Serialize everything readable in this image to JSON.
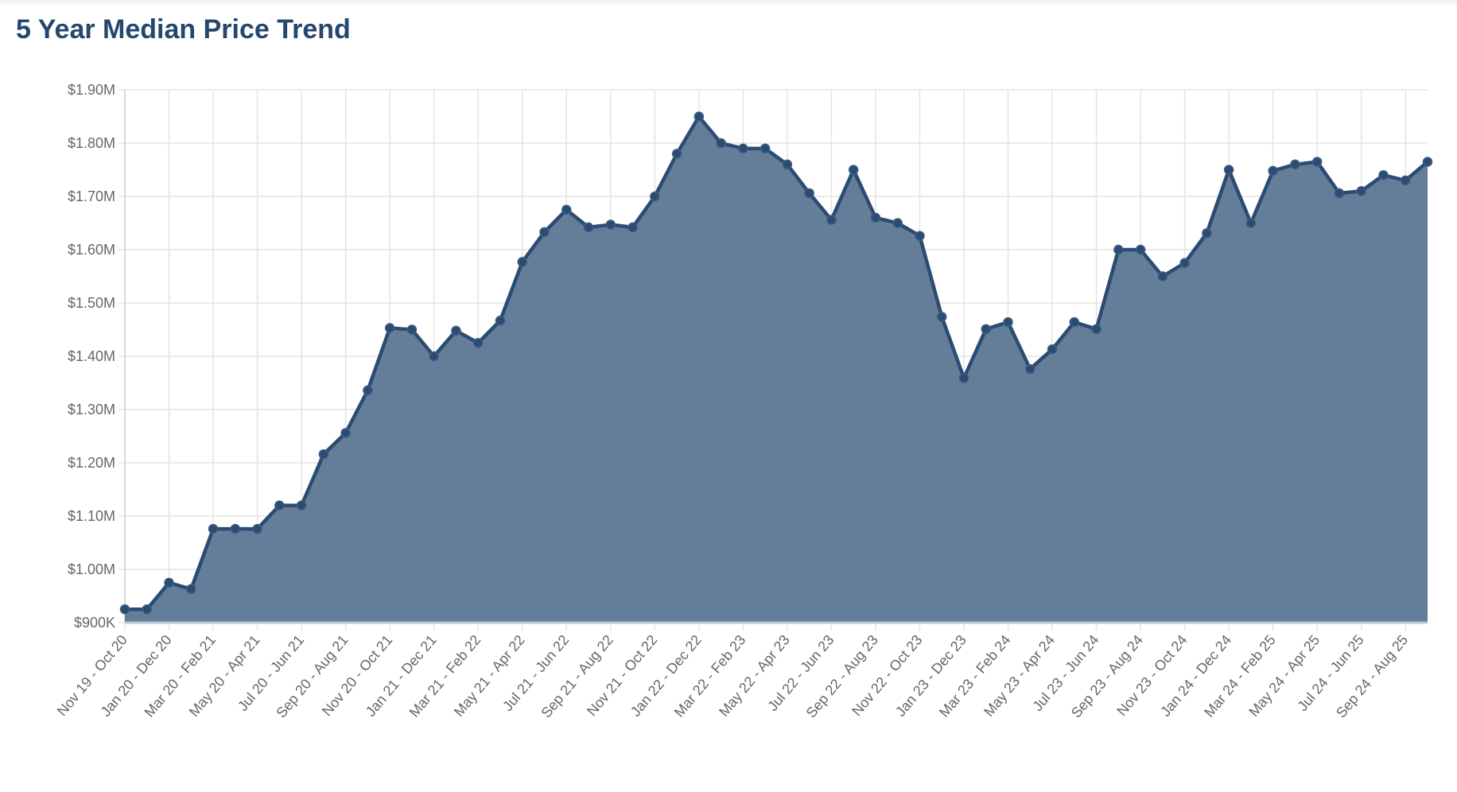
{
  "title": "5 Year Median Price Trend",
  "chart_data": {
    "type": "area",
    "title": "5 Year Median Price Trend",
    "xlabel": "",
    "ylabel": "",
    "ylim": [
      900000,
      1900000
    ],
    "y_ticks": [
      900000,
      1000000,
      1100000,
      1200000,
      1300000,
      1400000,
      1500000,
      1600000,
      1700000,
      1800000,
      1900000
    ],
    "y_tick_labels": [
      "$900K",
      "$1.00M",
      "$1.10M",
      "$1.20M",
      "$1.30M",
      "$1.40M",
      "$1.50M",
      "$1.60M",
      "$1.70M",
      "$1.80M",
      "$1.90M"
    ],
    "x_tick_labels": [
      "Nov 19 - Oct 20",
      "Jan 20 - Dec 20",
      "Mar 20 - Feb 21",
      "May 20 - Apr 21",
      "Jul 20 - Jun 21",
      "Sep 20 - Aug 21",
      "Nov 20 - Oct 21",
      "Jan 21 - Dec 21",
      "Mar 21 - Feb 22",
      "May 21 - Apr 22",
      "Jul 21 - Jun 22",
      "Sep 21 - Aug 22",
      "Nov 21 - Oct 22",
      "Jan 22 - Dec 22",
      "Mar 22 - Feb 23",
      "May 22 - Apr 23",
      "Jul 22 - Jun 23",
      "Sep 22 - Aug 23",
      "Nov 22 - Oct 23",
      "Jan 23 - Dec 23",
      "Mar 23 - Feb 24",
      "May 23 - Apr 24",
      "Jul 23 - Jun 24",
      "Sep 23 - Aug 24",
      "Nov 23 - Oct 24",
      "Jan 24 - Dec 24",
      "Mar 24 - Feb 25",
      "May 24 - Apr 25",
      "Jul 24 - Jun 25",
      "Sep 24 - Aug 25"
    ],
    "values": [
      925000,
      925000,
      975000,
      963000,
      1076000,
      1076000,
      1076000,
      1120000,
      1120000,
      1216000,
      1256000,
      1336000,
      1453000,
      1450000,
      1400000,
      1448000,
      1425000,
      1467000,
      1577000,
      1633000,
      1675000,
      1642000,
      1647000,
      1642000,
      1700000,
      1780000,
      1850000,
      1800000,
      1790000,
      1790000,
      1760000,
      1706000,
      1656000,
      1750000,
      1660000,
      1650000,
      1626000,
      1474000,
      1359000,
      1451000,
      1464000,
      1376000,
      1413000,
      1464000,
      1451000,
      1600000,
      1600000,
      1550000,
      1575000,
      1631000,
      1750000,
      1650000,
      1748000,
      1760000,
      1765000,
      1706000,
      1710000,
      1740000,
      1730000,
      1765000
    ],
    "grid": true,
    "legend": "none",
    "colors": {
      "line": "#2b4b72",
      "fill": "#5f7a96",
      "grid": "#e4e4e4",
      "title": "#24476e"
    }
  }
}
